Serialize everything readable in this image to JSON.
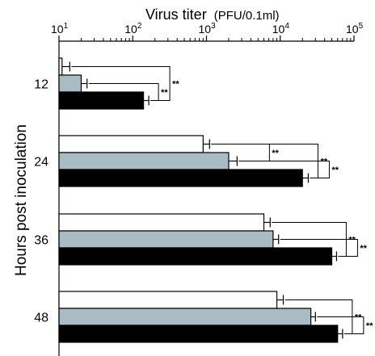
{
  "chart_data": {
    "type": "bar",
    "orientation": "horizontal",
    "title_main": "Virus titer",
    "title_unit": "(PFU/0.1ml)",
    "ylabel": "Hours post inoculation",
    "x_scale": "log",
    "xlim": [
      10,
      100000
    ],
    "x_ticks": [
      {
        "base": "10",
        "exp": "1"
      },
      {
        "base": "10",
        "exp": "2"
      },
      {
        "base": "10",
        "exp": "3"
      },
      {
        "base": "10",
        "exp": "4"
      },
      {
        "base": "10",
        "exp": "5"
      }
    ],
    "categories": [
      "12",
      "24",
      "36",
      "48"
    ],
    "series": [
      {
        "color": "#ffffff",
        "values": [
          11,
          900,
          6000,
          9000
        ],
        "errors": [
          14,
          1100,
          7300,
          11000
        ]
      },
      {
        "color": "#a9bcc4",
        "values": [
          20,
          2000,
          8000,
          26000
        ],
        "errors": [
          24,
          2600,
          9500,
          30000
        ]
      },
      {
        "color": "#000000",
        "values": [
          140,
          20000,
          50000,
          60000
        ],
        "errors": [
          165,
          24000,
          58000,
          70000
        ]
      }
    ],
    "significance": [
      {
        "category": 0,
        "pairs": [
          [
            1,
            2
          ],
          [
            0,
            2
          ]
        ],
        "label": "**"
      },
      {
        "category": 1,
        "pairs": [
          [
            0,
            2
          ],
          [
            1,
            2
          ],
          [
            0,
            1
          ]
        ],
        "label": "**"
      },
      {
        "category": 2,
        "pairs": [
          [
            0,
            2
          ],
          [
            1,
            2
          ]
        ],
        "label": "**"
      },
      {
        "category": 3,
        "pairs": [
          [
            0,
            2
          ],
          [
            1,
            2
          ]
        ],
        "label": "**"
      }
    ]
  }
}
